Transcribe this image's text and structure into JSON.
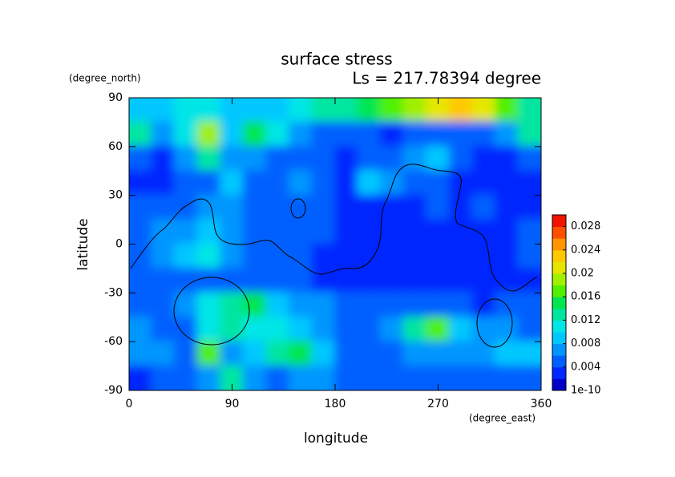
{
  "chart_data": {
    "type": "heatmap",
    "title": "surface stress",
    "subtitle": "Ls = 217.78394 degree",
    "x_label": "longitude",
    "x_unit": "(degree_east)",
    "y_label": "latitude",
    "y_unit": "(degree_north)",
    "xlim": [
      0,
      360
    ],
    "xticks": [
      0,
      90,
      180,
      270,
      360
    ],
    "ylim": [
      -90,
      90
    ],
    "yticks": [
      -90,
      -60,
      -30,
      0,
      30,
      60,
      90
    ],
    "x": [
      10,
      30,
      50,
      70,
      90,
      110,
      130,
      150,
      170,
      190,
      210,
      230,
      250,
      270,
      290,
      310,
      330,
      350
    ],
    "y": [
      82.5,
      67.5,
      52.5,
      37.5,
      22.5,
      7.5,
      -7.5,
      -22.5,
      -37.5,
      -52.5,
      -67.5,
      -82.5
    ],
    "values": [
      [
        0.008,
        0.008,
        0.01,
        0.01,
        0.008,
        0.008,
        0.008,
        0.01,
        0.012,
        0.012,
        0.014,
        0.016,
        0.018,
        0.02,
        0.022,
        0.02,
        0.016,
        0.012
      ],
      [
        0.012,
        0.006,
        0.01,
        0.018,
        0.008,
        0.014,
        0.01,
        0.006,
        0.004,
        0.004,
        0.004,
        0.003,
        0.004,
        0.004,
        0.004,
        0.004,
        0.006,
        0.012
      ],
      [
        0.004,
        0.003,
        0.006,
        0.012,
        0.006,
        0.006,
        0.004,
        0.004,
        0.004,
        0.003,
        0.004,
        0.004,
        0.006,
        0.008,
        0.004,
        0.003,
        0.003,
        0.004
      ],
      [
        0.003,
        0.003,
        0.004,
        0.004,
        0.008,
        0.005,
        0.004,
        0.006,
        0.004,
        0.003,
        0.008,
        0.006,
        0.004,
        0.004,
        0.003,
        0.003,
        0.003,
        0.003
      ],
      [
        0.004,
        0.004,
        0.005,
        0.006,
        0.006,
        0.005,
        0.004,
        0.005,
        0.004,
        0.003,
        0.003,
        0.003,
        0.003,
        0.004,
        0.003,
        0.004,
        0.003,
        0.003
      ],
      [
        0.005,
        0.006,
        0.006,
        0.008,
        0.006,
        0.005,
        0.005,
        0.004,
        0.004,
        0.003,
        0.003,
        0.003,
        0.002,
        0.003,
        0.002,
        0.003,
        0.003,
        0.004
      ],
      [
        0.005,
        0.006,
        0.008,
        0.01,
        0.006,
        0.005,
        0.004,
        0.004,
        0.003,
        0.003,
        0.003,
        0.002,
        0.002,
        0.002,
        0.002,
        0.002,
        0.003,
        0.004
      ],
      [
        0.004,
        0.004,
        0.005,
        0.005,
        0.004,
        0.004,
        0.004,
        0.004,
        0.003,
        0.003,
        0.003,
        0.002,
        0.002,
        0.002,
        0.002,
        0.002,
        0.003,
        0.003
      ],
      [
        0.004,
        0.004,
        0.006,
        0.01,
        0.012,
        0.014,
        0.008,
        0.006,
        0.006,
        0.004,
        0.004,
        0.004,
        0.004,
        0.005,
        0.004,
        0.003,
        0.004,
        0.004
      ],
      [
        0.006,
        0.005,
        0.005,
        0.01,
        0.012,
        0.01,
        0.01,
        0.008,
        0.006,
        0.004,
        0.004,
        0.006,
        0.012,
        0.016,
        0.008,
        0.006,
        0.006,
        0.005
      ],
      [
        0.006,
        0.006,
        0.004,
        0.016,
        0.006,
        0.008,
        0.012,
        0.014,
        0.008,
        0.004,
        0.004,
        0.004,
        0.006,
        0.006,
        0.006,
        0.006,
        0.008,
        0.008
      ],
      [
        0.003,
        0.004,
        0.004,
        0.006,
        0.012,
        0.006,
        0.004,
        0.006,
        0.006,
        0.004,
        0.004,
        0.004,
        0.004,
        0.004,
        0.004,
        0.004,
        0.004,
        0.004
      ]
    ],
    "colorbar": {
      "lim": [
        0,
        0.03
      ],
      "colors": [
        "#0000c8",
        "#0028ff",
        "#0060ff",
        "#0096ff",
        "#00c8ff",
        "#00e6e6",
        "#00e6a0",
        "#00e650",
        "#50f000",
        "#a0f000",
        "#e6e600",
        "#ffc800",
        "#ff9600",
        "#ff5000",
        "#f01400"
      ],
      "ticks": [
        {
          "value": 1e-10,
          "label": "1e-10"
        },
        0.004,
        0.008,
        0.012,
        0.016,
        0.02,
        0.024,
        0.028
      ]
    }
  }
}
